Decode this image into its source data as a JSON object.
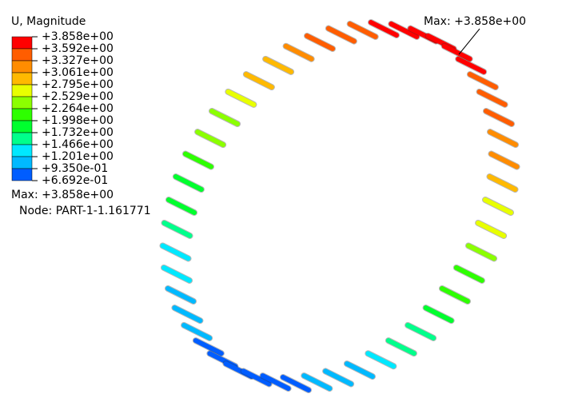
{
  "legend": {
    "title": "U, Magnitude",
    "labels": [
      "+3.858e+00",
      "+3.592e+00",
      "+3.327e+00",
      "+3.061e+00",
      "+2.795e+00",
      "+2.529e+00",
      "+2.264e+00",
      "+1.998e+00",
      "+1.732e+00",
      "+1.466e+00",
      "+1.201e+00",
      "+9.350e-01",
      "+6.692e-01"
    ],
    "colors": [
      "#ff0000",
      "#ff5d00",
      "#ff8c00",
      "#ffb900",
      "#e8ff00",
      "#8bff00",
      "#2eff00",
      "#00ff2e",
      "#00ff8b",
      "#00e8ff",
      "#00b9ff",
      "#005dff",
      "#0000ff"
    ],
    "max": "Max: +3.858e+00",
    "node": "Node: PART-1-1.161771"
  },
  "annotation": "Max: +3.858e+00"
}
